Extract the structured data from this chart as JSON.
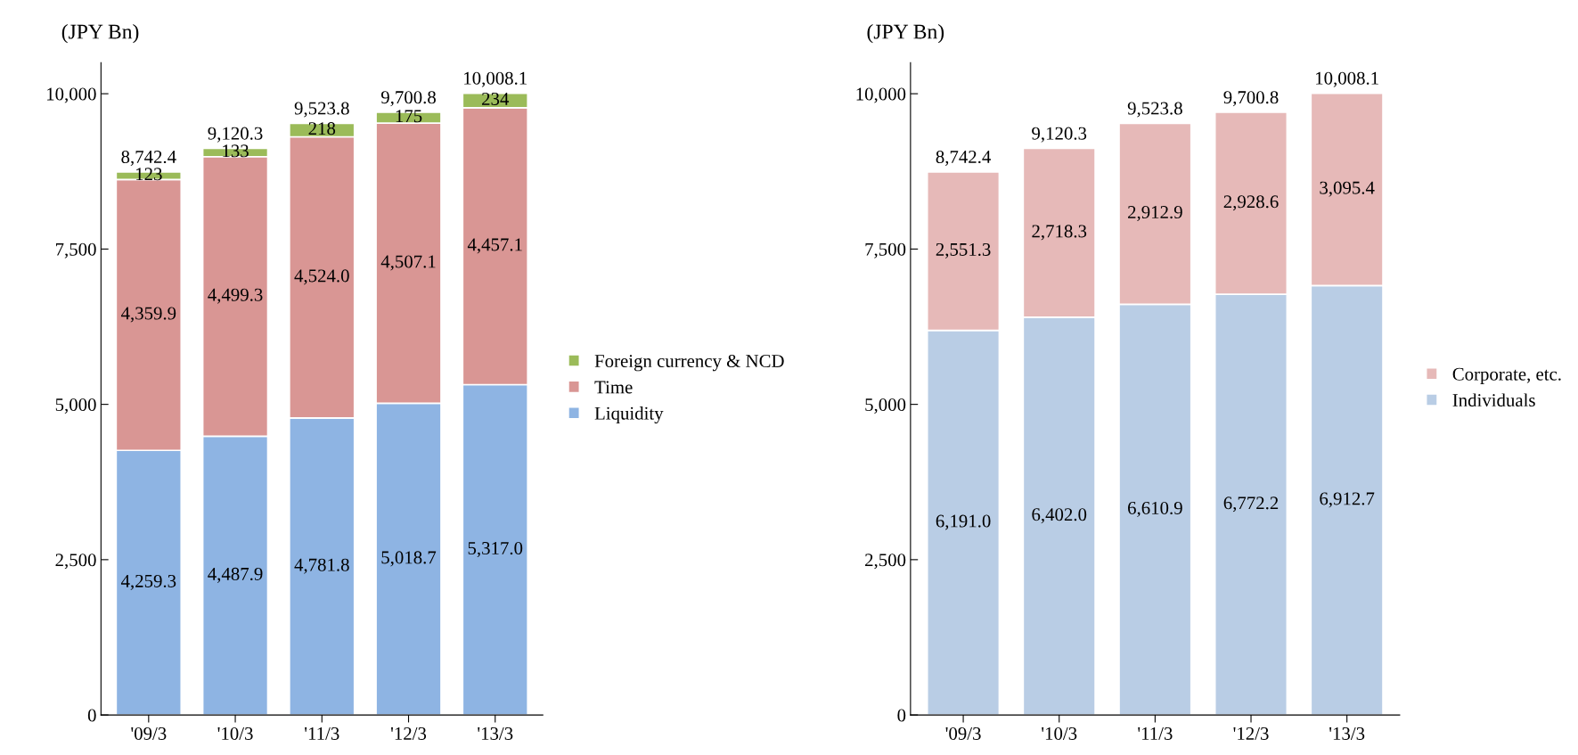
{
  "chart_data": [
    {
      "type": "bar",
      "stacked": true,
      "ylabel": "(JPY Bn)",
      "categories": [
        "'09/3",
        "'10/3",
        "'11/3",
        "'12/3",
        "'13/3"
      ],
      "series": [
        {
          "name": "Liquidity",
          "color": "#8eb4e3",
          "values": [
            4259.3,
            4487.9,
            4781.8,
            5018.7,
            5317.0
          ],
          "value_labels": [
            "4,259.3",
            "4,487.9",
            "4,781.8",
            "5,018.7",
            "5,317.0"
          ]
        },
        {
          "name": "Time",
          "color": "#d99694",
          "values": [
            4359.9,
            4499.3,
            4524.0,
            4507.1,
            4457.1
          ],
          "value_labels": [
            "4,359.9",
            "4,499.3",
            "4,524.0",
            "4,507.1",
            "4,457.1"
          ]
        },
        {
          "name": "Foreign currency & NCD",
          "color": "#9bbb59",
          "values": [
            123,
            133,
            218,
            175,
            234
          ],
          "value_labels": [
            "123",
            "133",
            "218",
            "175",
            "234"
          ]
        }
      ],
      "totals": [
        "8,742.4",
        "9,120.3",
        "9,523.8",
        "9,700.8",
        "10,008.1"
      ],
      "ylim": [
        0,
        10500
      ],
      "yticks": [
        {
          "value": 0,
          "label": "0"
        },
        {
          "value": 2500,
          "label": "2,500"
        },
        {
          "value": 5000,
          "label": "5,000"
        },
        {
          "value": 7500,
          "label": "7,500"
        },
        {
          "value": 10000,
          "label": "10,000"
        }
      ],
      "grid": false,
      "legend": "right"
    },
    {
      "type": "bar",
      "stacked": true,
      "ylabel": "(JPY Bn)",
      "categories": [
        "'09/3",
        "'10/3",
        "'11/3",
        "'12/3",
        "'13/3"
      ],
      "series": [
        {
          "name": "Individuals",
          "color": "#b9cde5",
          "values": [
            6191.0,
            6402.0,
            6610.9,
            6772.2,
            6912.7
          ],
          "value_labels": [
            "6,191.0",
            "6,402.0",
            "6,610.9",
            "6,772.2",
            "6,912.7"
          ]
        },
        {
          "name": "Corporate, etc.",
          "color": "#e6b9b8",
          "values": [
            2551.3,
            2718.3,
            2912.9,
            2928.6,
            3095.4
          ],
          "value_labels": [
            "2,551.3",
            "2,718.3",
            "2,912.9",
            "2,928.6",
            "3,095.4"
          ]
        }
      ],
      "totals": [
        "8,742.4",
        "9,120.3",
        "9,523.8",
        "9,700.8",
        "10,008.1"
      ],
      "ylim": [
        0,
        10500
      ],
      "yticks": [
        {
          "value": 0,
          "label": "0"
        },
        {
          "value": 2500,
          "label": "2,500"
        },
        {
          "value": 5000,
          "label": "5,000"
        },
        {
          "value": 7500,
          "label": "7,500"
        },
        {
          "value": 10000,
          "label": "10,000"
        }
      ],
      "grid": false,
      "legend": "right"
    }
  ]
}
